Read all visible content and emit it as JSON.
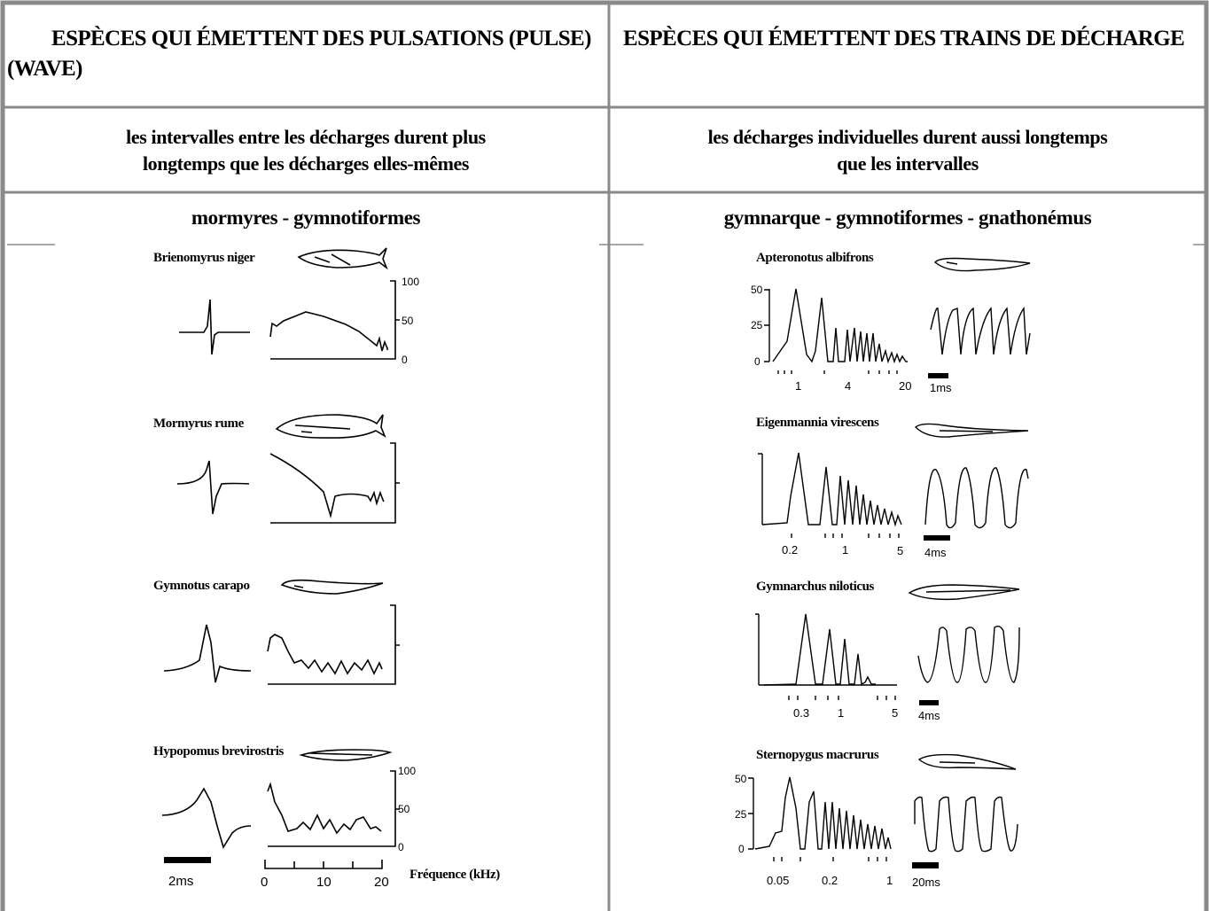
{
  "header": {
    "left_title": "ESPÈCES QUI ÉMETTENT DES PULSATIONS (PULSE)",
    "left_title_line2": "(WAVE)",
    "right_title": "ESPÈCES QUI ÉMETTENT DES TRAINS DE DÉCHARGE"
  },
  "row2": {
    "left_line1": "les intervalles entre les décharges durent plus",
    "left_line2": "longtemps que les décharges elles-mêmes",
    "right_line1": "les décharges individuelles durent aussi longtemps",
    "right_line2": "que les intervalles"
  },
  "row3": {
    "left_group": "mormyres - gymnotiformes",
    "right_group": "gymnarque - gymnotiformes - gnathonémus"
  },
  "left_species": [
    {
      "name": "Brienomyrus niger",
      "scale": [
        "100",
        "50",
        "0"
      ]
    },
    {
      "name": "Mormyrus rume"
    },
    {
      "name": "Gymnotus carapo"
    },
    {
      "name": "Hypopomus brevirostris",
      "scale": [
        "100",
        "50",
        "0"
      ],
      "time_bar": "2ms",
      "freq_ticks": [
        "0",
        "10",
        "20"
      ],
      "freq_label": "Fréquence (kHz)"
    }
  ],
  "right_species": [
    {
      "name": "Apteronotus albifrons",
      "y_ticks": [
        "50",
        "25",
        "0"
      ],
      "x_ticks": [
        "1",
        "4",
        "20"
      ],
      "time_bar": "1ms"
    },
    {
      "name": "Eigenmannia virescens",
      "x_ticks": [
        "0.2",
        "1",
        "5"
      ],
      "time_bar": "4ms"
    },
    {
      "name": "Gymnarchus niloticus",
      "x_ticks": [
        "0.3",
        "1",
        "5"
      ],
      "time_bar": "4ms"
    },
    {
      "name": "Sternopygus macrurus",
      "y_ticks": [
        "50",
        "25",
        "0"
      ],
      "x_ticks": [
        "0.05",
        "0.2",
        "1"
      ],
      "time_bar": "20ms"
    }
  ]
}
